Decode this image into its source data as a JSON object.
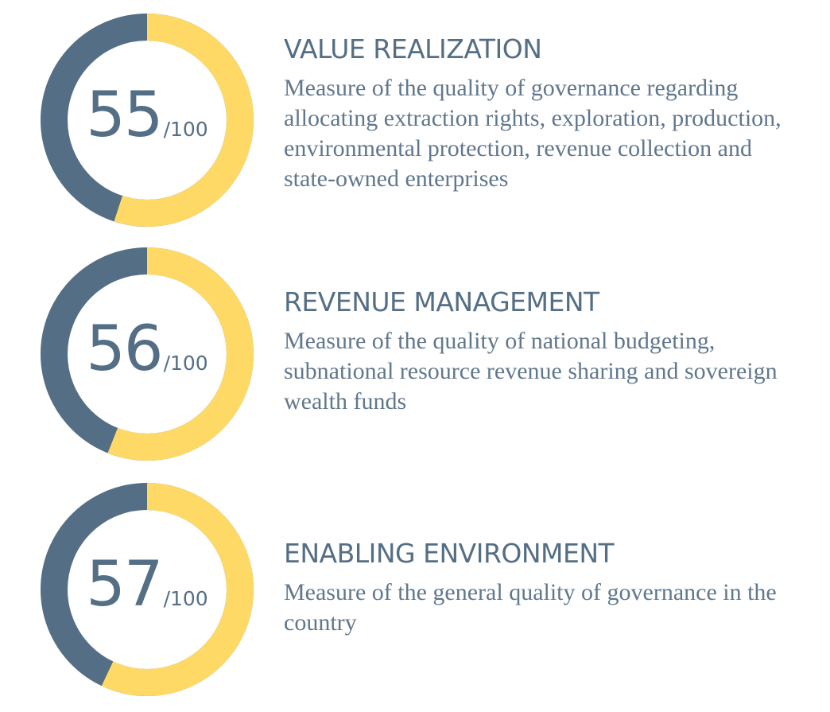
{
  "chart_data": [
    {
      "type": "pie",
      "max": 100,
      "value": 55,
      "score_text": "55",
      "total_text": "/100",
      "title": "VALUE REALIZATION",
      "description": "Measure of the quality of governance regarding allocating extraction rights, exploration, production, environmental protection, revenue collection and state-owned enterprises"
    },
    {
      "type": "pie",
      "max": 100,
      "value": 56,
      "score_text": "56",
      "total_text": "/100",
      "title": "REVENUE MANAGEMENT",
      "description": "Measure of the quality of national budgeting, subnational resource revenue sharing and sovereign wealth funds"
    },
    {
      "type": "pie",
      "max": 100,
      "value": 57,
      "score_text": "57",
      "total_text": "/100",
      "title": "ENABLING ENVIRONMENT",
      "description": "Measure of the general quality of governance in the country"
    }
  ],
  "colors": {
    "score_arc": "#ffd966",
    "remainder_arc": "#546e85",
    "text": "#546e85"
  }
}
